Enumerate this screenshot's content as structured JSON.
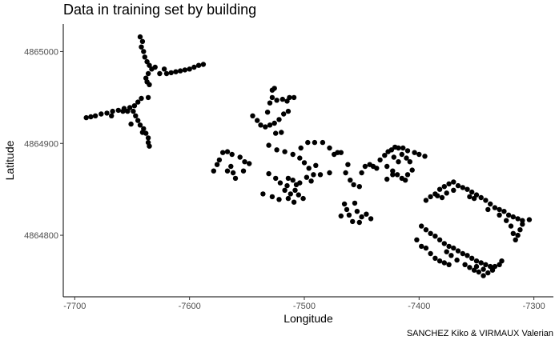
{
  "title": "Data in training set by building",
  "caption": "SANCHEZ Kiko & VIRMAUX Valerian",
  "chart_data": {
    "type": "scatter",
    "title": "Data in training set by building",
    "xlabel": "Longitude",
    "ylabel": "Latitude",
    "xlim": [
      -7710,
      -7283
    ],
    "ylim": [
      4864733,
      4865030
    ],
    "x_ticks": [
      -7700,
      -7600,
      -7500,
      -7400,
      -7300
    ],
    "x_tick_labels": [
      "-7700",
      "-7600",
      "-7500",
      "-7400",
      "-7300"
    ],
    "y_ticks": [
      4864800,
      4864900,
      4865000
    ],
    "y_tick_labels": [
      "4864800",
      "4864900",
      "4865000"
    ],
    "grid": false,
    "point_color": "#000000",
    "points": [
      [
        -7643,
        4865016
      ],
      [
        -7641,
        4865011
      ],
      [
        -7642,
        4865005
      ],
      [
        -7640,
        4865000
      ],
      [
        -7639,
        4864994
      ],
      [
        -7637,
        4864989
      ],
      [
        -7635,
        4864985
      ],
      [
        -7633,
        4864981
      ],
      [
        -7636,
        4864976
      ],
      [
        -7638,
        4864971
      ],
      [
        -7637,
        4864967
      ],
      [
        -7635,
        4864964
      ],
      [
        -7626,
        4864976
      ],
      [
        -7620,
        4864976
      ],
      [
        -7616,
        4864977
      ],
      [
        -7612,
        4864978
      ],
      [
        -7608,
        4864979
      ],
      [
        -7604,
        4864980
      ],
      [
        -7600,
        4864981
      ],
      [
        -7596,
        4864983
      ],
      [
        -7592,
        4864985
      ],
      [
        -7588,
        4864986
      ],
      [
        -7630,
        4864983
      ],
      [
        -7622,
        4864981
      ],
      [
        -7690,
        4864928
      ],
      [
        -7686,
        4864929
      ],
      [
        -7682,
        4864930
      ],
      [
        -7677,
        4864932
      ],
      [
        -7672,
        4864933
      ],
      [
        -7667,
        4864935
      ],
      [
        -7662,
        4864936
      ],
      [
        -7657,
        4864938
      ],
      [
        -7652,
        4864939
      ],
      [
        -7648,
        4864941
      ],
      [
        -7645,
        4864945
      ],
      [
        -7642,
        4864949
      ],
      [
        -7636,
        4864950
      ],
      [
        -7668,
        4864930
      ],
      [
        -7658,
        4864935
      ],
      [
        -7654,
        4864935
      ],
      [
        -7649,
        4864935
      ],
      [
        -7647,
        4864930
      ],
      [
        -7645,
        4864925
      ],
      [
        -7643,
        4864920
      ],
      [
        -7640,
        4864916
      ],
      [
        -7638,
        4864911
      ],
      [
        -7636,
        4864906
      ],
      [
        -7636,
        4864901
      ],
      [
        -7635,
        4864897
      ],
      [
        -7651,
        4864921
      ],
      [
        -7641,
        4864912
      ],
      [
        -7579,
        4864870
      ],
      [
        -7576,
        4864877
      ],
      [
        -7574,
        4864882
      ],
      [
        -7571,
        4864890
      ],
      [
        -7567,
        4864891
      ],
      [
        -7563,
        4864888
      ],
      [
        -7556,
        4864885
      ],
      [
        -7552,
        4864880
      ],
      [
        -7548,
        4864878
      ],
      [
        -7564,
        4864875
      ],
      [
        -7562,
        4864868
      ],
      [
        -7560,
        4864862
      ],
      [
        -7553,
        4864870
      ],
      [
        -7567,
        4864870
      ],
      [
        -7545,
        4864930
      ],
      [
        -7541,
        4864925
      ],
      [
        -7538,
        4864920
      ],
      [
        -7534,
        4864918
      ],
      [
        -7530,
        4864920
      ],
      [
        -7526,
        4864922
      ],
      [
        -7522,
        4864926
      ],
      [
        -7518,
        4864932
      ],
      [
        -7514,
        4864935
      ],
      [
        -7530,
        4864944
      ],
      [
        -7528,
        4864950
      ],
      [
        -7524,
        4864947
      ],
      [
        -7519,
        4864948
      ],
      [
        -7515,
        4864946
      ],
      [
        -7513,
        4864950
      ],
      [
        -7528,
        4864958
      ],
      [
        -7526,
        4864960
      ],
      [
        -7532,
        4864934
      ],
      [
        -7520,
        4864912
      ],
      [
        -7509,
        4864950
      ],
      [
        -7525,
        4864911
      ],
      [
        -7531,
        4864898
      ],
      [
        -7524,
        4864893
      ],
      [
        -7517,
        4864891
      ],
      [
        -7510,
        4864888
      ],
      [
        -7504,
        4864884
      ],
      [
        -7500,
        4864879
      ],
      [
        -7496,
        4864873
      ],
      [
        -7492,
        4864866
      ],
      [
        -7504,
        4864857
      ],
      [
        -7508,
        4864849
      ],
      [
        -7512,
        4864845
      ],
      [
        -7517,
        4864849
      ],
      [
        -7521,
        4864857
      ],
      [
        -7525,
        4864862
      ],
      [
        -7531,
        4864867
      ],
      [
        -7536,
        4864845
      ],
      [
        -7528,
        4864842
      ],
      [
        -7522,
        4864839
      ],
      [
        -7514,
        4864840
      ],
      [
        -7509,
        4864836
      ],
      [
        -7505,
        4864844
      ],
      [
        -7501,
        4864840
      ],
      [
        -7498,
        4864863
      ],
      [
        -7494,
        4864859
      ],
      [
        -7490,
        4864876
      ],
      [
        -7486,
        4864866
      ],
      [
        -7497,
        4864901
      ],
      [
        -7491,
        4864901
      ],
      [
        -7484,
        4864901
      ],
      [
        -7478,
        4864895
      ],
      [
        -7474,
        4864888
      ],
      [
        -7471,
        4864890
      ],
      [
        -7468,
        4864890
      ],
      [
        -7462,
        4864877
      ],
      [
        -7464,
        4864868
      ],
      [
        -7460,
        4864860
      ],
      [
        -7478,
        4864868
      ],
      [
        -7515,
        4864854
      ],
      [
        -7503,
        4864895
      ],
      [
        -7510,
        4864860
      ],
      [
        -7507,
        4864855
      ],
      [
        -7514,
        4864862
      ],
      [
        -7465,
        4864834
      ],
      [
        -7463,
        4864828
      ],
      [
        -7461,
        4864822
      ],
      [
        -7458,
        4864815
      ],
      [
        -7454,
        4864826
      ],
      [
        -7450,
        4864820
      ],
      [
        -7446,
        4864823
      ],
      [
        -7442,
        4864818
      ],
      [
        -7468,
        4864821
      ],
      [
        -7452,
        4864814
      ],
      [
        -7456,
        4864835
      ],
      [
        -7457,
        4864855
      ],
      [
        -7452,
        4864853
      ],
      [
        -7450,
        4864868
      ],
      [
        -7447,
        4864875
      ],
      [
        -7443,
        4864877
      ],
      [
        -7440,
        4864875
      ],
      [
        -7437,
        4864873
      ],
      [
        -7434,
        4864882
      ],
      [
        -7430,
        4864887
      ],
      [
        -7427,
        4864891
      ],
      [
        -7424,
        4864893
      ],
      [
        -7421,
        4864896
      ],
      [
        -7418,
        4864895
      ],
      [
        -7415,
        4864888
      ],
      [
        -7411,
        4864884
      ],
      [
        -7408,
        4864880
      ],
      [
        -7404,
        4864890
      ],
      [
        -7400,
        4864888
      ],
      [
        -7395,
        4864886
      ],
      [
        -7428,
        4864875
      ],
      [
        -7423,
        4864870
      ],
      [
        -7419,
        4864866
      ],
      [
        -7415,
        4864862
      ],
      [
        -7412,
        4864860
      ],
      [
        -7410,
        4864866
      ],
      [
        -7406,
        4864871
      ],
      [
        -7428,
        4864861
      ],
      [
        -7423,
        4864866
      ],
      [
        -7418,
        4864880
      ],
      [
        -7422,
        4864885
      ],
      [
        -7414,
        4864895
      ],
      [
        -7410,
        4864892
      ],
      [
        -7398,
        4864810
      ],
      [
        -7394,
        4864806
      ],
      [
        -7390,
        4864802
      ],
      [
        -7386,
        4864799
      ],
      [
        -7382,
        4864795
      ],
      [
        -7378,
        4864791
      ],
      [
        -7374,
        4864788
      ],
      [
        -7370,
        4864786
      ],
      [
        -7366,
        4864783
      ],
      [
        -7362,
        4864780
      ],
      [
        -7358,
        4864778
      ],
      [
        -7354,
        4864775
      ],
      [
        -7350,
        4864772
      ],
      [
        -7346,
        4864770
      ],
      [
        -7342,
        4864768
      ],
      [
        -7338,
        4864766
      ],
      [
        -7334,
        4864766
      ],
      [
        -7330,
        4864768
      ],
      [
        -7328,
        4864772
      ],
      [
        -7402,
        4864795
      ],
      [
        -7398,
        4864788
      ],
      [
        -7394,
        4864786
      ],
      [
        -7390,
        4864780
      ],
      [
        -7386,
        4864775
      ],
      [
        -7382,
        4864772
      ],
      [
        -7378,
        4864770
      ],
      [
        -7374,
        4864768
      ],
      [
        -7360,
        4864768
      ],
      [
        -7356,
        4864765
      ],
      [
        -7352,
        4864762
      ],
      [
        -7348,
        4864760
      ],
      [
        -7344,
        4864756
      ],
      [
        -7340,
        4864759
      ],
      [
        -7336,
        4864762
      ],
      [
        -7367,
        4864773
      ],
      [
        -7372,
        4864778
      ],
      [
        -7376,
        4864782
      ],
      [
        -7344,
        4864763
      ],
      [
        -7350,
        4864766
      ],
      [
        -7394,
        4864838
      ],
      [
        -7390,
        4864842
      ],
      [
        -7386,
        4864845
      ],
      [
        -7382,
        4864850
      ],
      [
        -7378,
        4864853
      ],
      [
        -7374,
        4864856
      ],
      [
        -7370,
        4864858
      ],
      [
        -7366,
        4864854
      ],
      [
        -7362,
        4864852
      ],
      [
        -7358,
        4864850
      ],
      [
        -7354,
        4864847
      ],
      [
        -7350,
        4864844
      ],
      [
        -7346,
        4864841
      ],
      [
        -7342,
        4864838
      ],
      [
        -7338,
        4864834
      ],
      [
        -7334,
        4864830
      ],
      [
        -7330,
        4864828
      ],
      [
        -7326,
        4864826
      ],
      [
        -7322,
        4864822
      ],
      [
        -7318,
        4864820
      ],
      [
        -7314,
        4864818
      ],
      [
        -7310,
        4864816
      ],
      [
        -7304,
        4864817
      ],
      [
        -7324,
        4864816
      ],
      [
        -7320,
        4864810
      ],
      [
        -7318,
        4864802
      ],
      [
        -7316,
        4864795
      ],
      [
        -7314,
        4864800
      ],
      [
        -7312,
        4864806
      ],
      [
        -7310,
        4864812
      ],
      [
        -7384,
        4864843
      ],
      [
        -7380,
        4864841
      ],
      [
        -7376,
        4864846
      ],
      [
        -7370,
        4864849
      ],
      [
        -7356,
        4864842
      ],
      [
        -7352,
        4864840
      ],
      [
        -7340,
        4864828
      ],
      [
        -7330,
        4864822
      ]
    ]
  }
}
